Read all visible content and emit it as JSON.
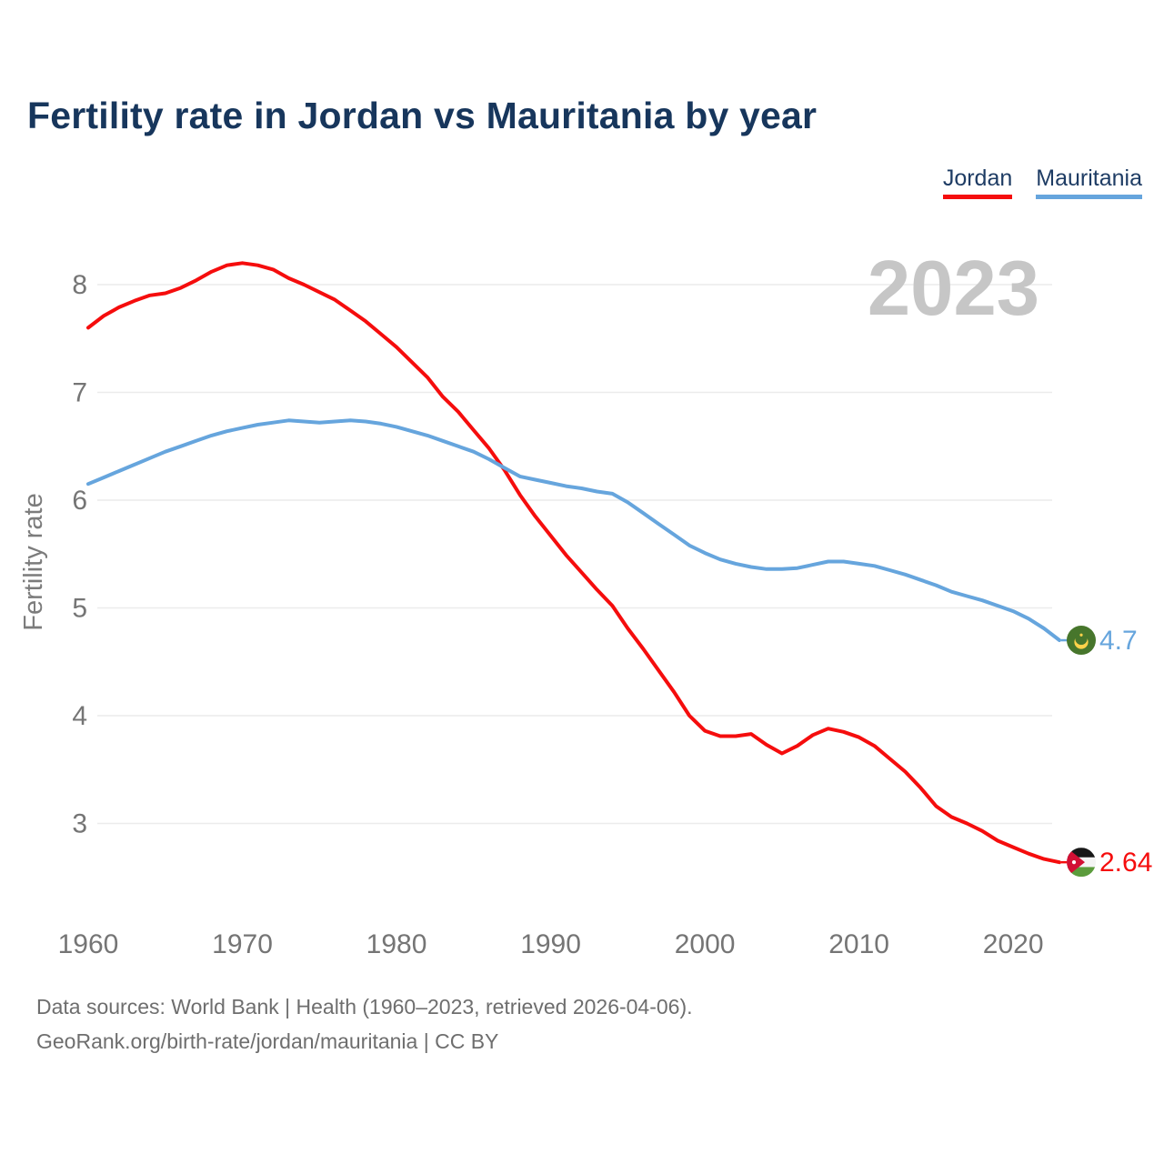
{
  "watermark": "2023",
  "legend": {
    "items": [
      {
        "label": "Jordan",
        "color": "#f50d0d"
      },
      {
        "label": "Mauritania",
        "color": "#66a5dd"
      }
    ]
  },
  "footer": {
    "line1": "Data sources: World Bank | Health (1960–2023, retrieved 2026-04-06).",
    "line2": "GeoRank.org/birth-rate/jordan/mauritania | CC BY"
  },
  "chart_data": {
    "type": "line",
    "title": "Fertility rate in Jordan vs Mauritania by year",
    "xlabel": "",
    "ylabel": "Fertility rate",
    "xticks": [
      1960,
      1970,
      1980,
      1990,
      2000,
      2010,
      2020
    ],
    "yticks": [
      3,
      4,
      5,
      6,
      7,
      8
    ],
    "ylim": [
      2.5,
      8.5
    ],
    "grid": true,
    "legend_position": "top-right",
    "x": [
      1960,
      1961,
      1962,
      1963,
      1964,
      1965,
      1966,
      1967,
      1968,
      1969,
      1970,
      1971,
      1972,
      1973,
      1974,
      1975,
      1976,
      1977,
      1978,
      1979,
      1980,
      1981,
      1982,
      1983,
      1984,
      1985,
      1986,
      1987,
      1988,
      1989,
      1990,
      1991,
      1992,
      1993,
      1994,
      1995,
      1996,
      1997,
      1998,
      1999,
      2000,
      2001,
      2002,
      2003,
      2004,
      2005,
      2006,
      2007,
      2008,
      2009,
      2010,
      2011,
      2012,
      2013,
      2014,
      2015,
      2016,
      2017,
      2018,
      2019,
      2020,
      2021,
      2022,
      2023
    ],
    "series": [
      {
        "name": "Jordan",
        "color": "#f50d0d",
        "flag": "jordan",
        "end_label": "2.64",
        "values": [
          7.6,
          7.71,
          7.79,
          7.85,
          7.9,
          7.92,
          7.97,
          8.04,
          8.12,
          8.18,
          8.2,
          8.18,
          8.14,
          8.06,
          8.0,
          7.93,
          7.86,
          7.76,
          7.66,
          7.54,
          7.42,
          7.28,
          7.14,
          6.96,
          6.82,
          6.65,
          6.48,
          6.28,
          6.05,
          5.85,
          5.67,
          5.49,
          5.33,
          5.17,
          5.02,
          4.81,
          4.62,
          4.42,
          4.22,
          4.0,
          3.86,
          3.81,
          3.81,
          3.83,
          3.73,
          3.65,
          3.72,
          3.82,
          3.88,
          3.85,
          3.8,
          3.72,
          3.6,
          3.48,
          3.33,
          3.16,
          3.06,
          3.0,
          2.93,
          2.84,
          2.78,
          2.72,
          2.67,
          2.64
        ]
      },
      {
        "name": "Mauritania",
        "color": "#66a5dd",
        "flag": "mauritania",
        "end_label": "4.7",
        "values": [
          6.15,
          6.21,
          6.27,
          6.33,
          6.39,
          6.45,
          6.5,
          6.55,
          6.6,
          6.64,
          6.67,
          6.7,
          6.72,
          6.74,
          6.73,
          6.72,
          6.73,
          6.74,
          6.73,
          6.71,
          6.68,
          6.64,
          6.6,
          6.55,
          6.5,
          6.45,
          6.38,
          6.3,
          6.22,
          6.19,
          6.16,
          6.13,
          6.11,
          6.08,
          6.06,
          5.98,
          5.88,
          5.78,
          5.68,
          5.58,
          5.51,
          5.45,
          5.41,
          5.38,
          5.36,
          5.36,
          5.37,
          5.4,
          5.43,
          5.43,
          5.41,
          5.39,
          5.35,
          5.31,
          5.26,
          5.21,
          5.15,
          5.11,
          5.07,
          5.02,
          4.97,
          4.9,
          4.81,
          4.7
        ]
      }
    ]
  }
}
